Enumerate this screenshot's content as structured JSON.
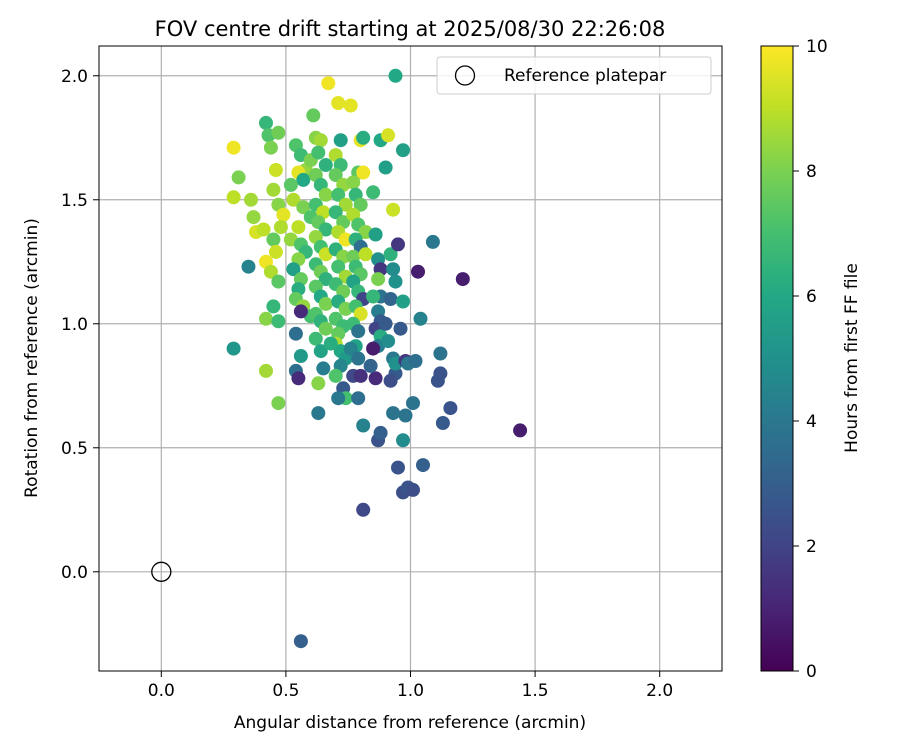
{
  "chart_data": {
    "type": "scatter",
    "title": "FOV centre drift starting at 2025/08/30 22:26:08",
    "xlabel": "Angular distance from reference (arcmin)",
    "ylabel": "Rotation from reference (arcmin)",
    "xlim": [
      -0.25,
      2.25
    ],
    "ylim": [
      -0.4,
      2.12
    ],
    "xticks": [
      "0.0",
      "0.5",
      "1.0",
      "1.5",
      "2.0"
    ],
    "yticks": [
      "0.0",
      "0.5",
      "1.0",
      "1.5",
      "2.0"
    ],
    "grid": true,
    "legend": {
      "position": "top-right",
      "label": "Reference platepar"
    },
    "reference_point": {
      "x": 0.0,
      "y": 0.0
    },
    "colorbar": {
      "label": "Hours from first FF file",
      "range": [
        0,
        10
      ],
      "ticks": [
        "0",
        "2",
        "4",
        "6",
        "8",
        "10"
      ],
      "colormap": "viridis"
    },
    "points": [
      [
        0.29,
        1.71,
        9.8
      ],
      [
        0.29,
        1.51,
        9.0
      ],
      [
        0.31,
        1.59,
        8.0
      ],
      [
        0.36,
        1.5,
        8.6
      ],
      [
        0.37,
        1.43,
        8.4
      ],
      [
        0.38,
        1.37,
        9.4
      ],
      [
        0.41,
        1.38,
        9.0
      ],
      [
        0.42,
        1.81,
        6.6
      ],
      [
        0.43,
        1.76,
        7.2
      ],
      [
        0.44,
        1.71,
        8.0
      ],
      [
        0.46,
        1.62,
        9.2
      ],
      [
        0.47,
        1.77,
        7.8
      ],
      [
        0.45,
        1.54,
        8.6
      ],
      [
        0.47,
        1.48,
        8.2
      ],
      [
        0.49,
        1.44,
        9.6
      ],
      [
        0.48,
        1.39,
        8.8
      ],
      [
        0.45,
        1.34,
        7.6
      ],
      [
        0.46,
        1.29,
        9.2
      ],
      [
        0.42,
        1.25,
        9.8
      ],
      [
        0.44,
        1.21,
        8.8
      ],
      [
        0.47,
        1.17,
        7.4
      ],
      [
        0.45,
        1.07,
        6.6
      ],
      [
        0.42,
        1.02,
        8.2
      ],
      [
        0.47,
        1.01,
        6.8
      ],
      [
        0.35,
        1.23,
        4.4
      ],
      [
        0.29,
        0.9,
        5.2
      ],
      [
        0.42,
        0.81,
        8.6
      ],
      [
        0.47,
        0.68,
        8.0
      ],
      [
        0.54,
        1.72,
        7.2
      ],
      [
        0.56,
        1.68,
        6.8
      ],
      [
        0.58,
        1.62,
        8.4
      ],
      [
        0.55,
        1.61,
        9.6
      ],
      [
        0.6,
        1.66,
        8.0
      ],
      [
        0.57,
        1.58,
        6.0
      ],
      [
        0.52,
        1.56,
        7.4
      ],
      [
        0.53,
        1.5,
        8.8
      ],
      [
        0.57,
        1.47,
        8.0
      ],
      [
        0.6,
        1.43,
        7.2
      ],
      [
        0.55,
        1.39,
        9.0
      ],
      [
        0.52,
        1.34,
        8.4
      ],
      [
        0.56,
        1.32,
        7.2
      ],
      [
        0.58,
        1.29,
        6.6
      ],
      [
        0.55,
        1.26,
        8.2
      ],
      [
        0.53,
        1.22,
        5.6
      ],
      [
        0.56,
        1.18,
        7.6
      ],
      [
        0.55,
        1.14,
        6.2
      ],
      [
        0.54,
        1.1,
        7.6
      ],
      [
        0.57,
        1.07,
        8.4
      ],
      [
        0.6,
        1.03,
        7.0
      ],
      [
        0.54,
        0.96,
        3.6
      ],
      [
        0.56,
        0.87,
        5.4
      ],
      [
        0.54,
        0.81,
        3.6
      ],
      [
        0.55,
        0.78,
        1.2
      ],
      [
        0.56,
        1.05,
        1.2
      ],
      [
        0.56,
        -0.28,
        3.0
      ],
      [
        0.61,
        1.84,
        7.6
      ],
      [
        0.62,
        1.75,
        8.2
      ],
      [
        0.64,
        1.74,
        8.6
      ],
      [
        0.63,
        1.69,
        7.0
      ],
      [
        0.66,
        1.64,
        6.4
      ],
      [
        0.62,
        1.6,
        7.8
      ],
      [
        0.64,
        1.56,
        6.6
      ],
      [
        0.66,
        1.52,
        8.2
      ],
      [
        0.62,
        1.48,
        7.0
      ],
      [
        0.65,
        1.45,
        9.0
      ],
      [
        0.63,
        1.41,
        7.6
      ],
      [
        0.66,
        1.38,
        6.6
      ],
      [
        0.62,
        1.35,
        8.4
      ],
      [
        0.64,
        1.31,
        7.0
      ],
      [
        0.66,
        1.28,
        9.2
      ],
      [
        0.62,
        1.24,
        6.8
      ],
      [
        0.64,
        1.21,
        7.8
      ],
      [
        0.66,
        1.18,
        6.4
      ],
      [
        0.62,
        1.15,
        7.4
      ],
      [
        0.64,
        1.11,
        6.0
      ],
      [
        0.66,
        1.08,
        8.0
      ],
      [
        0.62,
        1.04,
        7.2
      ],
      [
        0.64,
        1.01,
        6.4
      ],
      [
        0.66,
        0.98,
        7.8
      ],
      [
        0.62,
        0.94,
        6.8
      ],
      [
        0.64,
        0.89,
        5.8
      ],
      [
        0.63,
        0.76,
        8.2
      ],
      [
        0.63,
        0.64,
        4.0
      ],
      [
        0.65,
        0.82,
        4.2
      ],
      [
        0.67,
        1.97,
        9.8
      ],
      [
        0.71,
        1.89,
        9.6
      ],
      [
        0.72,
        1.74,
        5.6
      ],
      [
        0.7,
        1.68,
        8.8
      ],
      [
        0.72,
        1.64,
        6.8
      ],
      [
        0.7,
        1.6,
        7.6
      ],
      [
        0.73,
        1.56,
        8.4
      ],
      [
        0.71,
        1.52,
        7.0
      ],
      [
        0.74,
        1.48,
        8.6
      ],
      [
        0.7,
        1.45,
        6.6
      ],
      [
        0.73,
        1.41,
        7.6
      ],
      [
        0.71,
        1.37,
        8.8
      ],
      [
        0.74,
        1.34,
        9.8
      ],
      [
        0.7,
        1.3,
        6.4
      ],
      [
        0.73,
        1.27,
        8.2
      ],
      [
        0.71,
        1.23,
        7.0
      ],
      [
        0.74,
        1.19,
        8.6
      ],
      [
        0.7,
        1.16,
        6.8
      ],
      [
        0.73,
        1.13,
        7.8
      ],
      [
        0.71,
        1.09,
        6.2
      ],
      [
        0.74,
        1.06,
        8.0
      ],
      [
        0.7,
        1.02,
        7.2
      ],
      [
        0.73,
        0.99,
        6.8
      ],
      [
        0.71,
        0.96,
        7.6
      ],
      [
        0.7,
        0.92,
        8.8
      ],
      [
        0.72,
        0.89,
        6.0
      ],
      [
        0.74,
        0.86,
        5.4
      ],
      [
        0.72,
        0.83,
        4.6
      ],
      [
        0.7,
        0.79,
        7.2
      ],
      [
        0.73,
        0.74,
        2.8
      ],
      [
        0.74,
        0.7,
        7.0
      ],
      [
        0.71,
        0.7,
        4.0
      ],
      [
        0.68,
        0.92,
        6.2
      ],
      [
        0.76,
        1.88,
        9.6
      ],
      [
        0.8,
        1.74,
        9.6
      ],
      [
        0.81,
        1.75,
        6.2
      ],
      [
        0.79,
        1.61,
        7.4
      ],
      [
        0.81,
        1.61,
        9.8
      ],
      [
        0.77,
        1.57,
        8.2
      ],
      [
        0.78,
        1.52,
        6.6
      ],
      [
        0.8,
        1.48,
        7.6
      ],
      [
        0.77,
        1.44,
        8.8
      ],
      [
        0.79,
        1.4,
        7.2
      ],
      [
        0.82,
        1.37,
        8.2
      ],
      [
        0.78,
        1.34,
        6.4
      ],
      [
        0.8,
        1.31,
        3.6
      ],
      [
        0.77,
        1.27,
        7.8
      ],
      [
        0.82,
        1.28,
        9.0
      ],
      [
        0.78,
        1.23,
        6.8
      ],
      [
        0.8,
        1.2,
        7.4
      ],
      [
        0.77,
        1.17,
        5.8
      ],
      [
        0.79,
        1.13,
        6.6
      ],
      [
        0.81,
        1.1,
        2.0
      ],
      [
        0.78,
        1.07,
        7.0
      ],
      [
        0.8,
        1.04,
        9.4
      ],
      [
        0.77,
        1.0,
        6.8
      ],
      [
        0.79,
        0.97,
        3.8
      ],
      [
        0.78,
        0.91,
        5.8
      ],
      [
        0.76,
        0.9,
        4.4
      ],
      [
        0.79,
        0.86,
        3.8
      ],
      [
        0.77,
        0.79,
        2.2
      ],
      [
        0.8,
        0.79,
        1.4
      ],
      [
        0.79,
        0.7,
        3.6
      ],
      [
        0.81,
        0.59,
        4.4
      ],
      [
        0.81,
        0.25,
        2.2
      ],
      [
        0.85,
        1.53,
        6.8
      ],
      [
        0.86,
        1.36,
        5.6
      ],
      [
        0.87,
        1.26,
        5.0
      ],
      [
        0.88,
        1.22,
        1.6
      ],
      [
        0.87,
        1.18,
        8.0
      ],
      [
        0.88,
        1.11,
        3.8
      ],
      [
        0.85,
        1.11,
        6.6
      ],
      [
        0.87,
        1.05,
        4.2
      ],
      [
        0.88,
        1.01,
        2.8
      ],
      [
        0.86,
        0.98,
        2.0
      ],
      [
        0.88,
        0.95,
        6.2
      ],
      [
        0.87,
        0.91,
        4.2
      ],
      [
        0.85,
        0.9,
        0.8
      ],
      [
        0.86,
        0.78,
        1.2
      ],
      [
        0.84,
        0.83,
        3.2
      ],
      [
        0.87,
        0.53,
        2.6
      ],
      [
        0.88,
        0.56,
        3.0
      ],
      [
        0.88,
        1.74,
        6.0
      ],
      [
        0.9,
        1.63,
        5.6
      ],
      [
        0.91,
        1.76,
        9.4
      ],
      [
        0.93,
        1.46,
        9.2
      ],
      [
        0.92,
        1.28,
        6.4
      ],
      [
        0.94,
        1.17,
        5.0
      ],
      [
        0.92,
        1.1,
        3.2
      ],
      [
        0.95,
        1.32,
        1.6
      ],
      [
        0.93,
        1.22,
        4.8
      ],
      [
        0.9,
        1.0,
        2.8
      ],
      [
        0.91,
        0.93,
        4.8
      ],
      [
        0.93,
        0.86,
        4.0
      ],
      [
        0.94,
        0.8,
        2.8
      ],
      [
        0.92,
        0.77,
        2.4
      ],
      [
        0.93,
        0.64,
        3.8
      ],
      [
        0.94,
        0.84,
        5.0
      ],
      [
        0.95,
        0.42,
        2.6
      ],
      [
        0.94,
        2.0,
        6.0
      ],
      [
        0.97,
        1.7,
        5.6
      ],
      [
        0.97,
        1.09,
        5.6
      ],
      [
        0.96,
        0.98,
        2.8
      ],
      [
        0.98,
        0.85,
        1.6
      ],
      [
        0.99,
        0.84,
        4.0
      ],
      [
        0.97,
        0.53,
        4.8
      ],
      [
        0.98,
        0.63,
        3.8
      ],
      [
        0.97,
        0.32,
        2.4
      ],
      [
        0.99,
        0.34,
        2.6
      ],
      [
        1.01,
        0.68,
        3.8
      ],
      [
        1.01,
        0.33,
        2.4
      ],
      [
        1.02,
        0.85,
        3.6
      ],
      [
        1.03,
        1.21,
        0.8
      ],
      [
        1.04,
        1.02,
        4.4
      ],
      [
        1.05,
        0.43,
        3.0
      ],
      [
        1.09,
        1.33,
        4.0
      ],
      [
        1.11,
        0.77,
        2.6
      ],
      [
        1.12,
        0.88,
        3.8
      ],
      [
        1.12,
        0.8,
        2.6
      ],
      [
        1.13,
        0.6,
        2.8
      ],
      [
        1.16,
        0.66,
        2.6
      ],
      [
        1.21,
        1.18,
        0.8
      ],
      [
        1.44,
        0.57,
        0.8
      ]
    ]
  }
}
